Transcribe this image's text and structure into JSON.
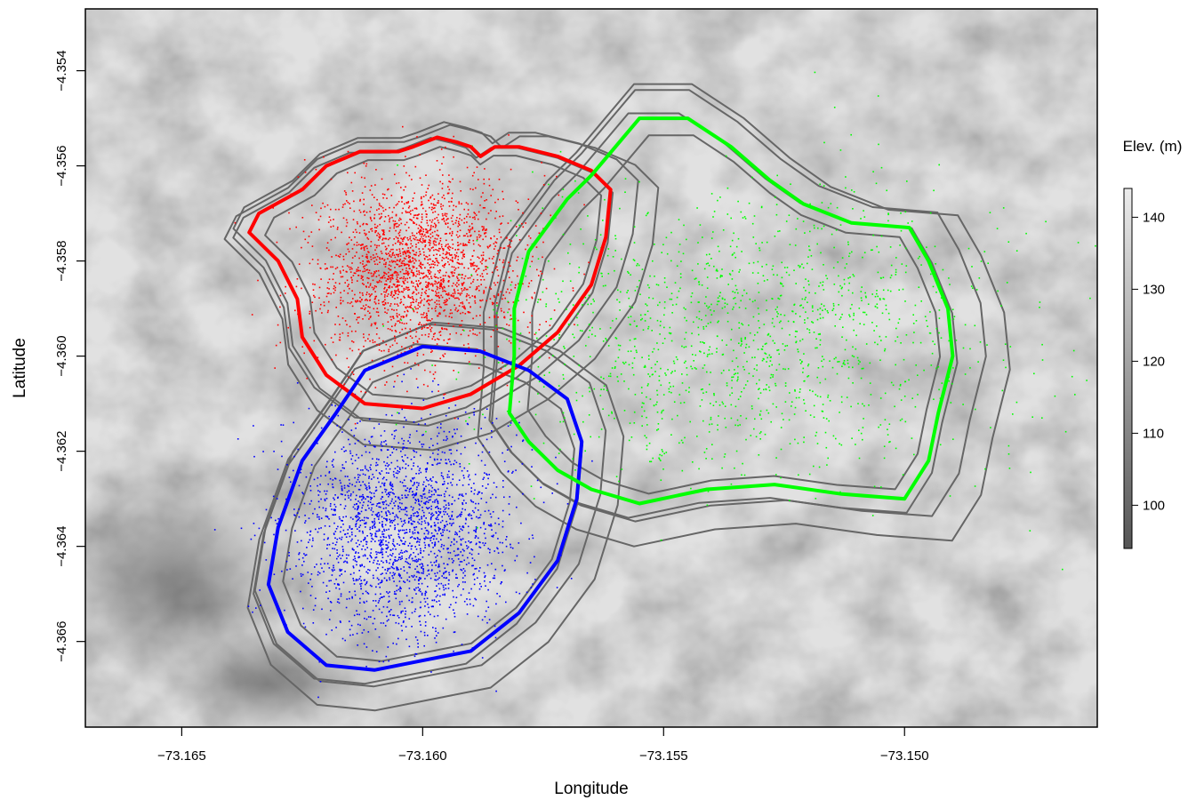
{
  "chart_data": {
    "type": "scatter",
    "title": "",
    "xlabel": "Longitude",
    "ylabel": "Latitude",
    "xlim": [
      -73.167,
      -73.146
    ],
    "ylim": [
      -4.3678,
      -4.3527
    ],
    "xticks": [
      {
        "value": -73.165,
        "label": "−73.165"
      },
      {
        "value": -73.16,
        "label": "−73.160"
      },
      {
        "value": -73.155,
        "label": "−73.155"
      },
      {
        "value": -73.15,
        "label": "−73.150"
      }
    ],
    "yticks": [
      {
        "value": -4.354,
        "label": "−4.354"
      },
      {
        "value": -4.356,
        "label": "−4.356"
      },
      {
        "value": -4.358,
        "label": "−4.358"
      },
      {
        "value": -4.36,
        "label": "−4.360"
      },
      {
        "value": -4.362,
        "label": "−4.362"
      },
      {
        "value": -4.364,
        "label": "−4.364"
      },
      {
        "value": -4.366,
        "label": "−4.366"
      }
    ],
    "grid": false,
    "background": {
      "type": "heatmap",
      "description": "elevation raster, grayscale",
      "legend_title": "Elev. (m)",
      "range": [
        94,
        144
      ],
      "ticks": [
        {
          "value": 100,
          "label": "100"
        },
        {
          "value": 110,
          "label": "110"
        },
        {
          "value": 120,
          "label": "120"
        },
        {
          "value": 130,
          "label": "130"
        },
        {
          "value": 140,
          "label": "140"
        }
      ],
      "color_low": "#555555",
      "color_high": "#ececec"
    },
    "series": [
      {
        "color": "#ff0000",
        "point_cloud": {
          "center": [
            -73.1601,
            -4.3581
          ],
          "spread": [
            0.0011,
            0.00095
          ],
          "count": 2200
        },
        "outline": [
          [
            -73.1636,
            -4.3574
          ],
          [
            -73.1634,
            -4.357
          ],
          [
            -73.1625,
            -4.3565
          ],
          [
            -73.162,
            -4.356
          ],
          [
            -73.1613,
            -4.3557
          ],
          [
            -73.1605,
            -4.3557
          ],
          [
            -73.1602,
            -4.3556
          ],
          [
            -73.1597,
            -4.3554
          ],
          [
            -73.1593,
            -4.3555
          ],
          [
            -73.159,
            -4.3556
          ],
          [
            -73.1588,
            -4.3558
          ],
          [
            -73.1585,
            -4.3556
          ],
          [
            -73.158,
            -4.3556
          ],
          [
            -73.1572,
            -4.3558
          ],
          [
            -73.1565,
            -4.3561
          ],
          [
            -73.1561,
            -4.3565
          ],
          [
            -73.1562,
            -4.3575
          ],
          [
            -73.1565,
            -4.3585
          ],
          [
            -73.1572,
            -4.3595
          ],
          [
            -73.158,
            -4.3602
          ],
          [
            -73.159,
            -4.3608
          ],
          [
            -73.16,
            -4.3611
          ],
          [
            -73.1612,
            -4.361
          ],
          [
            -73.162,
            -4.3604
          ],
          [
            -73.1625,
            -4.3596
          ],
          [
            -73.1626,
            -4.3588
          ],
          [
            -73.163,
            -4.358
          ],
          [
            -73.1636,
            -4.3574
          ]
        ]
      },
      {
        "color": "#0000ff",
        "point_cloud": {
          "center": [
            -73.1604,
            -4.3636
          ],
          "spread": [
            0.00115,
            0.0011
          ],
          "count": 2200
        },
        "outline": [
          [
            -73.16,
            -4.3598
          ],
          [
            -73.1588,
            -4.3599
          ],
          [
            -73.1578,
            -4.3603
          ],
          [
            -73.157,
            -4.3609
          ],
          [
            -73.1567,
            -4.3618
          ],
          [
            -73.1568,
            -4.363
          ],
          [
            -73.1572,
            -4.3643
          ],
          [
            -73.158,
            -4.3654
          ],
          [
            -73.159,
            -4.3662
          ],
          [
            -73.16,
            -4.3664
          ],
          [
            -73.161,
            -4.3666
          ],
          [
            -73.162,
            -4.3665
          ],
          [
            -73.1628,
            -4.3658
          ],
          [
            -73.1632,
            -4.3648
          ],
          [
            -73.163,
            -4.3636
          ],
          [
            -73.1625,
            -4.3622
          ],
          [
            -73.1618,
            -4.3612
          ],
          [
            -73.1612,
            -4.3603
          ],
          [
            -73.16,
            -4.3598
          ]
        ]
      },
      {
        "color": "#00ff00",
        "point_cloud": {
          "center": [
            -73.1532,
            -4.3595
          ],
          "spread": [
            0.0025,
            0.0015
          ],
          "count": 1500
        },
        "outline": [
          [
            -73.1565,
            -4.3562
          ],
          [
            -73.1555,
            -4.355
          ],
          [
            -73.1545,
            -4.355
          ],
          [
            -73.1536,
            -4.3556
          ],
          [
            -73.1528,
            -4.3563
          ],
          [
            -73.1521,
            -4.3568
          ],
          [
            -73.1511,
            -4.3572
          ],
          [
            -73.1499,
            -4.3573
          ],
          [
            -73.1495,
            -4.358
          ],
          [
            -73.1491,
            -4.359
          ],
          [
            -73.149,
            -4.36
          ],
          [
            -73.1493,
            -4.3612
          ],
          [
            -73.1495,
            -4.3622
          ],
          [
            -73.15,
            -4.363
          ],
          [
            -73.1513,
            -4.3629
          ],
          [
            -73.1527,
            -4.3627
          ],
          [
            -73.1541,
            -4.3628
          ],
          [
            -73.1555,
            -4.3631
          ],
          [
            -73.1565,
            -4.3628
          ],
          [
            -73.1572,
            -4.3624
          ],
          [
            -73.1578,
            -4.3618
          ],
          [
            -73.1582,
            -4.3612
          ],
          [
            -73.1581,
            -4.36
          ],
          [
            -73.1581,
            -4.359
          ],
          [
            -73.1578,
            -4.3578
          ],
          [
            -73.157,
            -4.3567
          ],
          [
            -73.1565,
            -4.3562
          ]
        ]
      }
    ]
  }
}
